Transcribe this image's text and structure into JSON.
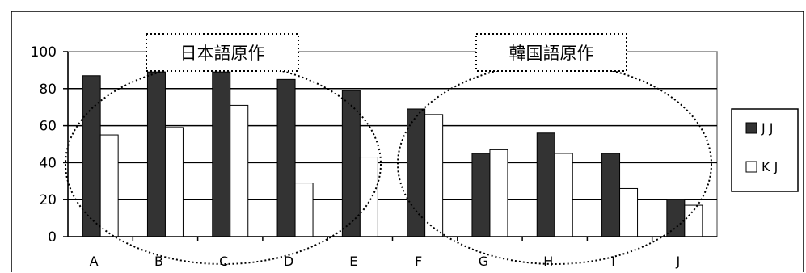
{
  "chart_data": {
    "type": "bar",
    "categories": [
      "A",
      "B",
      "C",
      "D",
      "E",
      "F",
      "G",
      "H",
      "I",
      "J"
    ],
    "series": [
      {
        "name": "J J",
        "color": "#333333",
        "values": [
          87,
          89,
          89,
          85,
          79,
          69,
          45,
          56,
          45,
          20
        ]
      },
      {
        "name": "K J",
        "color": "#ffffff",
        "values": [
          55,
          59,
          71,
          29,
          43,
          66,
          47,
          45,
          26,
          17
        ]
      }
    ],
    "ylim": [
      0,
      100
    ],
    "yticks": [
      0,
      20,
      40,
      60,
      80,
      100
    ],
    "grid": true,
    "legend_position": "right",
    "annotations": [
      "日本語原作",
      "韓国語原作"
    ]
  }
}
